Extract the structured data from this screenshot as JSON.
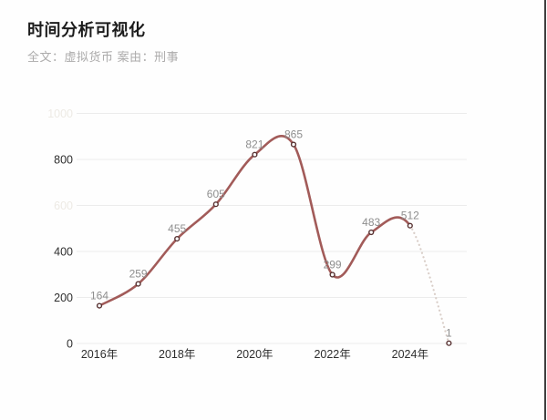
{
  "header": {
    "title": "时间分析可视化",
    "subtitle": "全文：虚拟货币 案由：刑事"
  },
  "chart_data": {
    "type": "line",
    "title": "时间分析可视化",
    "smooth": true,
    "legend": "none",
    "grid_on": true,
    "values": [
      164,
      259,
      455,
      605,
      821,
      865,
      299,
      483,
      512,
      1
    ],
    "value_labels": [
      "164",
      "259",
      "455",
      "605",
      "821",
      "865",
      "299",
      "483",
      "512",
      "1"
    ],
    "dashed_segment_start_index": 8,
    "x_tick_labels": [
      "2016年",
      "2018年",
      "2020年",
      "2022年",
      "2024年"
    ],
    "x_tick_point_indices": [
      0,
      2,
      4,
      6,
      8
    ],
    "y_tick_values": [
      0,
      200,
      400,
      800
    ],
    "y_tick_labels": [
      "0",
      "200",
      "400",
      "800"
    ],
    "y_faint_tick_values": [
      600,
      1000
    ],
    "y_faint_tick_labels": [
      "600",
      "1000"
    ],
    "grid_values": [
      0,
      200,
      400,
      600,
      800,
      1000
    ],
    "ylim": [
      0,
      1000
    ],
    "xlabel": "",
    "ylabel": "",
    "colors": {
      "line": "#a25b59",
      "dashed_line": "#d9cec8",
      "marker_fill": "#ffffff",
      "marker_border": "#583232",
      "value_label": "#8e8e8e",
      "axis_label": "#2e2e2e",
      "faint_axis_label": "#edeae4",
      "gridline": "#ececec",
      "title": "#1c1c1c",
      "subtitle": "#acabab",
      "right_border": "#3f3f3f",
      "background": "#fefefe"
    }
  }
}
